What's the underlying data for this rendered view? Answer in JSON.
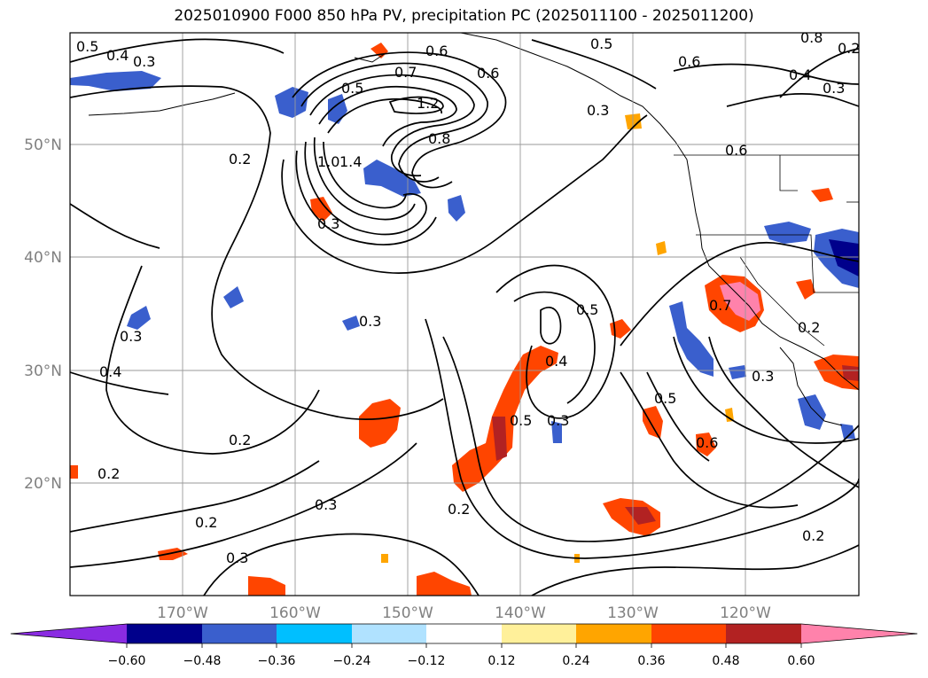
{
  "title": "2025010900 F000 850 hPa PV, precipitation PC (2025011100 - 2025011200)",
  "lat_labels": [
    "50°N",
    "40°N",
    "30°N",
    "20°N"
  ],
  "lon_labels": [
    "170°W",
    "160°W",
    "150°W",
    "140°W",
    "130°W",
    "120°W"
  ],
  "contour_labels": [
    "0.5",
    "0.4",
    "0.3",
    "0.2",
    "0.6",
    "0.7",
    "1.2",
    "0.5",
    "0.6",
    "0.3",
    "0.8",
    "1.0",
    "1.4",
    "0.5",
    "0.8",
    "0.4",
    "0.3",
    "0.6",
    "0.6",
    "0.3",
    "0.3",
    "0.4",
    "0.5",
    "0.7",
    "0.2",
    "0.3",
    "0.4",
    "0.5",
    "0.3",
    "0.5",
    "0.2",
    "0.6",
    "0.2",
    "0.2",
    "0.3",
    "0.2",
    "0.3",
    "0.2",
    "0.3",
    "0.2"
  ],
  "colorbar": {
    "ticks": [
      "−0.60",
      "−0.48",
      "−0.36",
      "−0.24",
      "−0.12",
      "0.12",
      "0.24",
      "0.36",
      "0.48",
      "0.60"
    ],
    "colors": [
      "#8a2be2",
      "#00008b",
      "#3a5fcd",
      "#00bfff",
      "#b0e2ff",
      "#ffffff",
      "#fff09a",
      "#ffa500",
      "#ff4500",
      "#b22222",
      "#ff82ab"
    ]
  }
}
